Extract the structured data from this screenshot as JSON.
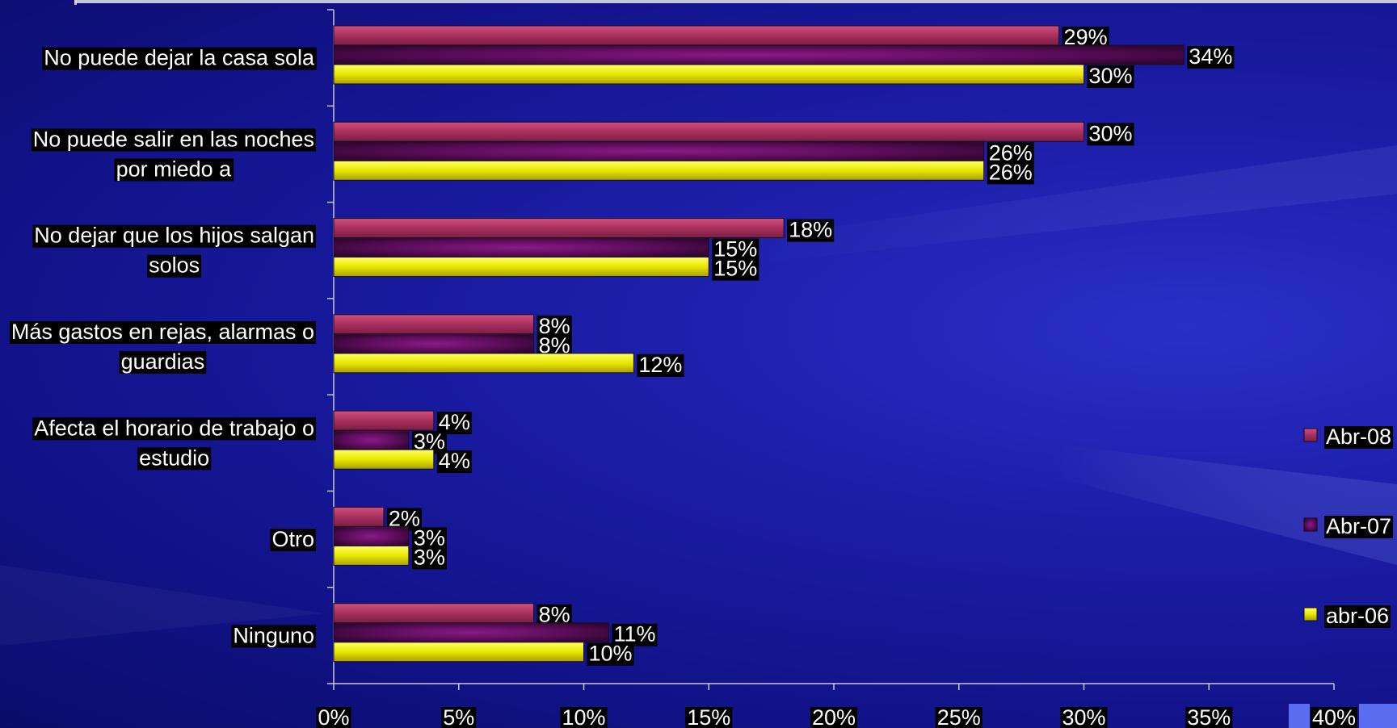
{
  "chart_data": {
    "type": "bar",
    "orientation": "horizontal",
    "categories": [
      [
        "No puede dejar la casa sola"
      ],
      [
        "No puede salir en las noches",
        "por miedo a"
      ],
      [
        "No dejar que los hijos salgan",
        "solos"
      ],
      [
        "Más gastos en rejas, alarmas o",
        "guardias"
      ],
      [
        "Afecta el horario de trabajo o",
        "estudio"
      ],
      [
        "Otro"
      ],
      [
        "Ninguno"
      ]
    ],
    "series": [
      {
        "name": "Abr-08",
        "color": "#a8305e",
        "values": [
          29,
          30,
          18,
          8,
          4,
          2,
          8
        ],
        "labels": [
          "29%",
          "30%",
          "18%",
          "8%",
          "4%",
          "2%",
          "8%"
        ]
      },
      {
        "name": "Abr-07",
        "color": "#4a0a48",
        "values": [
          34,
          26,
          15,
          8,
          3,
          3,
          11
        ],
        "labels": [
          "34%",
          "26%",
          "15%",
          "8%",
          "3%",
          "3%",
          "11%"
        ]
      },
      {
        "name": "abr-06",
        "color": "#e8e800",
        "values": [
          30,
          26,
          15,
          12,
          4,
          3,
          10
        ],
        "labels": [
          "30%",
          "26%",
          "15%",
          "12%",
          "4%",
          "3%",
          "10%"
        ]
      }
    ],
    "xlim": [
      0,
      40
    ],
    "xticks": [
      "0%",
      "5%",
      "10%",
      "15%",
      "20%",
      "25%",
      "30%",
      "35%",
      "40%"
    ],
    "legend_position": "right",
    "grid": false
  }
}
